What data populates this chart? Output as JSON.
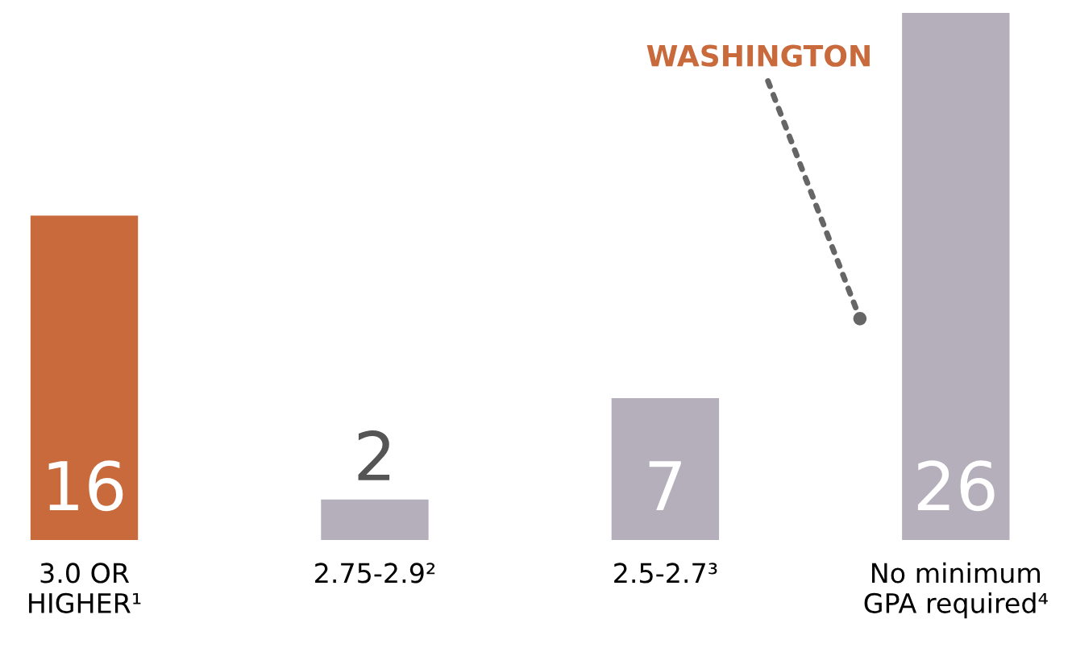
{
  "chart_data": {
    "type": "bar",
    "categories": [
      "3.0 OR\nHIGHER¹",
      "2.75-2.9²",
      "2.5-2.7³",
      "No minimum\nGPA required⁴"
    ],
    "values": [
      16,
      2,
      7,
      26
    ],
    "colors": [
      "#c96a3c",
      "#b5afbb",
      "#b5afbb",
      "#b5afbb"
    ],
    "data_labels": true,
    "annotations": [
      "WASHINGTON"
    ]
  }
}
